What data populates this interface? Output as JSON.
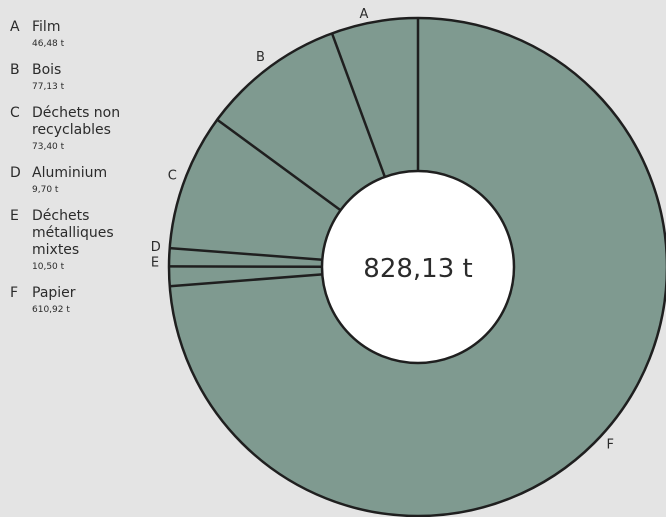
{
  "chart_data": {
    "type": "pie",
    "donut": true,
    "center_label": "828,13 t",
    "slices": [
      {
        "key": "A",
        "label": "Film",
        "value": 46.48,
        "value_label": "46,48 t"
      },
      {
        "key": "B",
        "label": "Bois",
        "value": 77.13,
        "value_label": "77,13 t"
      },
      {
        "key": "C",
        "label": "Déchets non\nrecyclables",
        "value": 73.4,
        "value_label": "73,40 t"
      },
      {
        "key": "D",
        "label": "Aluminium",
        "value": 9.7,
        "value_label": "9,70 t"
      },
      {
        "key": "E",
        "label": "Déchets\nmétalliques\nmixtes",
        "value": 10.5,
        "value_label": "10,50 t"
      },
      {
        "key": "F",
        "label": "Papier",
        "value": 610.92,
        "value_label": "610,92 t"
      }
    ],
    "colors": {
      "slice_fill": "#7f9a90",
      "slice_stroke": "#1f1f1f",
      "hole_fill": "#ffffff"
    },
    "direction": "counterclockwise",
    "legend_placement": "left"
  }
}
